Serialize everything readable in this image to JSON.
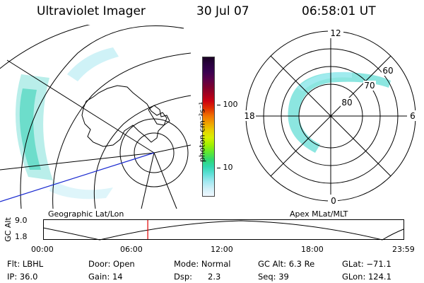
{
  "header": {
    "instrument": "Ultraviolet Imager",
    "date": "30 Jul 07",
    "time": "06:58:01 UT"
  },
  "colorbar": {
    "unit_label": "photon cm⁻²s⁻¹",
    "ticks": [
      "100",
      "10"
    ],
    "colors_top_to_bottom": [
      "#1a0024",
      "#2a0040",
      "#3a0050",
      "#5a004a",
      "#7a0030",
      "#a00020",
      "#cc0010",
      "#e03000",
      "#f07000",
      "#f0a000",
      "#e8d000",
      "#d8f000",
      "#a0f000",
      "#60e830",
      "#30d870",
      "#30d8b0",
      "#60e0d8",
      "#a0e8f0",
      "#d0f0f8",
      "#f0f8ff"
    ]
  },
  "left_map": {
    "label": "Geographic Lat/Lon"
  },
  "right_map": {
    "label": "Apex MLat/MLT",
    "mlt_labels": [
      "12",
      "6",
      "0",
      "18"
    ],
    "lat_labels": [
      "60",
      "70",
      "80"
    ]
  },
  "timeline": {
    "axis_label": "GC Alt",
    "y_ticks": [
      "9.0",
      "1.8"
    ],
    "x_ticks": [
      "00:00",
      "06:00",
      "12:00",
      "18:00",
      "23:59"
    ],
    "current_time_fraction": 0.2903,
    "marker_color": "#e00000"
  },
  "info": [
    [
      "Flt: LBHL",
      "Door: Open",
      "Mode: Normal",
      "GC Alt: 6.3 Re",
      "GLat: −71.1"
    ],
    [
      "IP: 36.0",
      "Gain: 14",
      "Dsp:",
      "2.3",
      "Seq: 39",
      "GLon: 124.1"
    ]
  ]
}
